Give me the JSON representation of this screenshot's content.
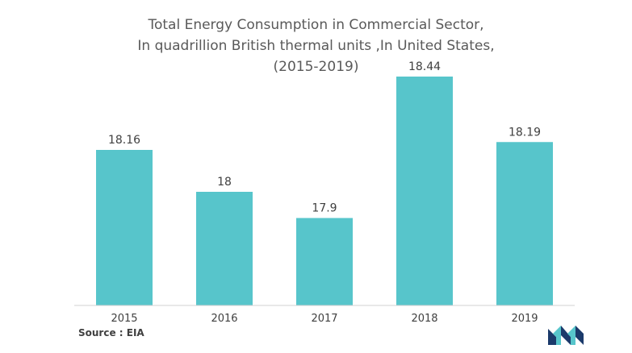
{
  "chart_data": {
    "type": "bar",
    "title_lines": [
      "Total Energy Consumption in Commercial Sector,",
      "In quadrillion British thermal units ,In United States,",
      "(2015-2019)"
    ],
    "categories": [
      "2015",
      "2016",
      "2017",
      "2018",
      "2019"
    ],
    "values": [
      18.16,
      18,
      17.9,
      18.44,
      18.19
    ],
    "value_labels": [
      "18.16",
      "18",
      "17.9",
      "18.44",
      "18.19"
    ],
    "color": "#57c5cb",
    "grid": false,
    "legend": "none"
  },
  "source": "Source : EIA",
  "logo": {
    "icon": "mordor-intelligence-logo-icon",
    "colors": [
      "#1b3a6b",
      "#57c5cb"
    ]
  }
}
